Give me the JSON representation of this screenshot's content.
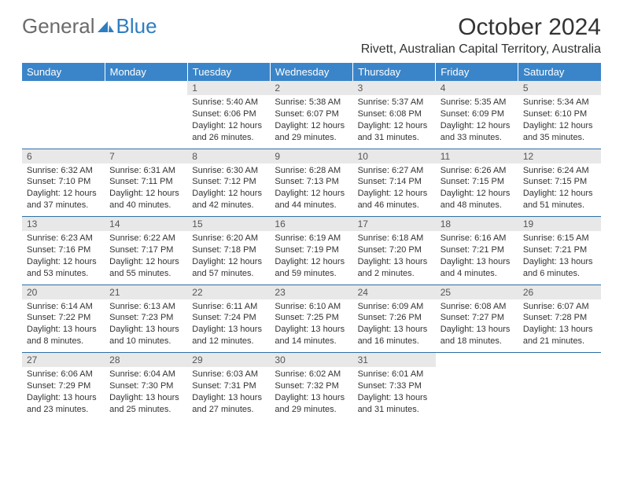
{
  "brand": {
    "part1": "General",
    "part2": "Blue"
  },
  "title": "October 2024",
  "subtitle": "Rivett, Australian Capital Territory, Australia",
  "colors": {
    "header_bg": "#3a85c9",
    "header_text": "#ffffff",
    "daynum_bg": "#e8e8e8",
    "cell_border": "#2f6ea8",
    "logo_gray": "#6b6b6b",
    "logo_blue": "#2f7dc1"
  },
  "day_headers": [
    "Sunday",
    "Monday",
    "Tuesday",
    "Wednesday",
    "Thursday",
    "Friday",
    "Saturday"
  ],
  "weeks": [
    {
      "nums": [
        "",
        "",
        "1",
        "2",
        "3",
        "4",
        "5"
      ],
      "cells": [
        null,
        null,
        {
          "sunrise": "Sunrise: 5:40 AM",
          "sunset": "Sunset: 6:06 PM",
          "day1": "Daylight: 12 hours",
          "day2": "and 26 minutes."
        },
        {
          "sunrise": "Sunrise: 5:38 AM",
          "sunset": "Sunset: 6:07 PM",
          "day1": "Daylight: 12 hours",
          "day2": "and 29 minutes."
        },
        {
          "sunrise": "Sunrise: 5:37 AM",
          "sunset": "Sunset: 6:08 PM",
          "day1": "Daylight: 12 hours",
          "day2": "and 31 minutes."
        },
        {
          "sunrise": "Sunrise: 5:35 AM",
          "sunset": "Sunset: 6:09 PM",
          "day1": "Daylight: 12 hours",
          "day2": "and 33 minutes."
        },
        {
          "sunrise": "Sunrise: 5:34 AM",
          "sunset": "Sunset: 6:10 PM",
          "day1": "Daylight: 12 hours",
          "day2": "and 35 minutes."
        }
      ]
    },
    {
      "nums": [
        "6",
        "7",
        "8",
        "9",
        "10",
        "11",
        "12"
      ],
      "cells": [
        {
          "sunrise": "Sunrise: 6:32 AM",
          "sunset": "Sunset: 7:10 PM",
          "day1": "Daylight: 12 hours",
          "day2": "and 37 minutes."
        },
        {
          "sunrise": "Sunrise: 6:31 AM",
          "sunset": "Sunset: 7:11 PM",
          "day1": "Daylight: 12 hours",
          "day2": "and 40 minutes."
        },
        {
          "sunrise": "Sunrise: 6:30 AM",
          "sunset": "Sunset: 7:12 PM",
          "day1": "Daylight: 12 hours",
          "day2": "and 42 minutes."
        },
        {
          "sunrise": "Sunrise: 6:28 AM",
          "sunset": "Sunset: 7:13 PM",
          "day1": "Daylight: 12 hours",
          "day2": "and 44 minutes."
        },
        {
          "sunrise": "Sunrise: 6:27 AM",
          "sunset": "Sunset: 7:14 PM",
          "day1": "Daylight: 12 hours",
          "day2": "and 46 minutes."
        },
        {
          "sunrise": "Sunrise: 6:26 AM",
          "sunset": "Sunset: 7:15 PM",
          "day1": "Daylight: 12 hours",
          "day2": "and 48 minutes."
        },
        {
          "sunrise": "Sunrise: 6:24 AM",
          "sunset": "Sunset: 7:15 PM",
          "day1": "Daylight: 12 hours",
          "day2": "and 51 minutes."
        }
      ]
    },
    {
      "nums": [
        "13",
        "14",
        "15",
        "16",
        "17",
        "18",
        "19"
      ],
      "cells": [
        {
          "sunrise": "Sunrise: 6:23 AM",
          "sunset": "Sunset: 7:16 PM",
          "day1": "Daylight: 12 hours",
          "day2": "and 53 minutes."
        },
        {
          "sunrise": "Sunrise: 6:22 AM",
          "sunset": "Sunset: 7:17 PM",
          "day1": "Daylight: 12 hours",
          "day2": "and 55 minutes."
        },
        {
          "sunrise": "Sunrise: 6:20 AM",
          "sunset": "Sunset: 7:18 PM",
          "day1": "Daylight: 12 hours",
          "day2": "and 57 minutes."
        },
        {
          "sunrise": "Sunrise: 6:19 AM",
          "sunset": "Sunset: 7:19 PM",
          "day1": "Daylight: 12 hours",
          "day2": "and 59 minutes."
        },
        {
          "sunrise": "Sunrise: 6:18 AM",
          "sunset": "Sunset: 7:20 PM",
          "day1": "Daylight: 13 hours",
          "day2": "and 2 minutes."
        },
        {
          "sunrise": "Sunrise: 6:16 AM",
          "sunset": "Sunset: 7:21 PM",
          "day1": "Daylight: 13 hours",
          "day2": "and 4 minutes."
        },
        {
          "sunrise": "Sunrise: 6:15 AM",
          "sunset": "Sunset: 7:21 PM",
          "day1": "Daylight: 13 hours",
          "day2": "and 6 minutes."
        }
      ]
    },
    {
      "nums": [
        "20",
        "21",
        "22",
        "23",
        "24",
        "25",
        "26"
      ],
      "cells": [
        {
          "sunrise": "Sunrise: 6:14 AM",
          "sunset": "Sunset: 7:22 PM",
          "day1": "Daylight: 13 hours",
          "day2": "and 8 minutes."
        },
        {
          "sunrise": "Sunrise: 6:13 AM",
          "sunset": "Sunset: 7:23 PM",
          "day1": "Daylight: 13 hours",
          "day2": "and 10 minutes."
        },
        {
          "sunrise": "Sunrise: 6:11 AM",
          "sunset": "Sunset: 7:24 PM",
          "day1": "Daylight: 13 hours",
          "day2": "and 12 minutes."
        },
        {
          "sunrise": "Sunrise: 6:10 AM",
          "sunset": "Sunset: 7:25 PM",
          "day1": "Daylight: 13 hours",
          "day2": "and 14 minutes."
        },
        {
          "sunrise": "Sunrise: 6:09 AM",
          "sunset": "Sunset: 7:26 PM",
          "day1": "Daylight: 13 hours",
          "day2": "and 16 minutes."
        },
        {
          "sunrise": "Sunrise: 6:08 AM",
          "sunset": "Sunset: 7:27 PM",
          "day1": "Daylight: 13 hours",
          "day2": "and 18 minutes."
        },
        {
          "sunrise": "Sunrise: 6:07 AM",
          "sunset": "Sunset: 7:28 PM",
          "day1": "Daylight: 13 hours",
          "day2": "and 21 minutes."
        }
      ]
    },
    {
      "nums": [
        "27",
        "28",
        "29",
        "30",
        "31",
        "",
        ""
      ],
      "cells": [
        {
          "sunrise": "Sunrise: 6:06 AM",
          "sunset": "Sunset: 7:29 PM",
          "day1": "Daylight: 13 hours",
          "day2": "and 23 minutes."
        },
        {
          "sunrise": "Sunrise: 6:04 AM",
          "sunset": "Sunset: 7:30 PM",
          "day1": "Daylight: 13 hours",
          "day2": "and 25 minutes."
        },
        {
          "sunrise": "Sunrise: 6:03 AM",
          "sunset": "Sunset: 7:31 PM",
          "day1": "Daylight: 13 hours",
          "day2": "and 27 minutes."
        },
        {
          "sunrise": "Sunrise: 6:02 AM",
          "sunset": "Sunset: 7:32 PM",
          "day1": "Daylight: 13 hours",
          "day2": "and 29 minutes."
        },
        {
          "sunrise": "Sunrise: 6:01 AM",
          "sunset": "Sunset: 7:33 PM",
          "day1": "Daylight: 13 hours",
          "day2": "and 31 minutes."
        },
        null,
        null
      ]
    }
  ]
}
